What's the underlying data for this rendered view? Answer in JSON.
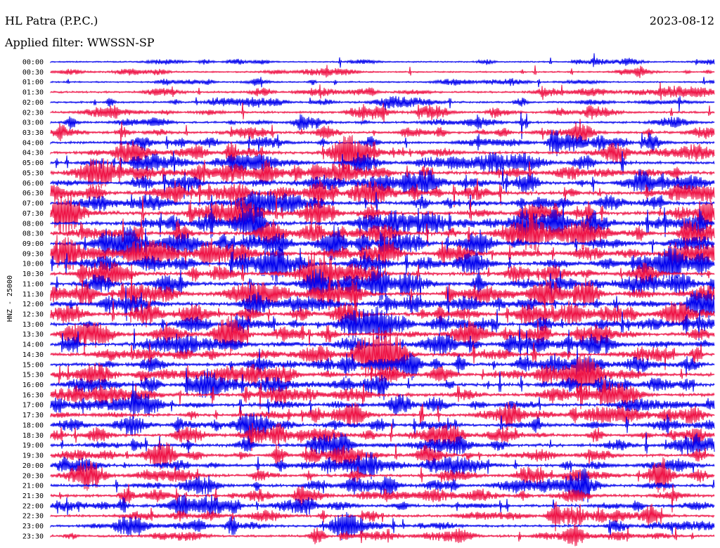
{
  "header": {
    "title": "HL Patra (P.P.C.)",
    "date": "2023-08-12",
    "filter": "Applied filter: WWSSN-SP"
  },
  "chart_data": {
    "type": "line",
    "ylabel": "HNZ - 25000",
    "row_labels": [
      "00:00",
      "00:30",
      "01:00",
      "01:30",
      "02:00",
      "02:30",
      "03:00",
      "03:30",
      "04:00",
      "04:30",
      "05:00",
      "05:30",
      "06:00",
      "06:30",
      "07:00",
      "07:30",
      "08:00",
      "08:30",
      "09:00",
      "09:30",
      "10:00",
      "10:30",
      "11:00",
      "11:30",
      "12:00",
      "12:30",
      "13:00",
      "13:30",
      "14:00",
      "14:30",
      "15:00",
      "15:30",
      "16:00",
      "16:30",
      "17:00",
      "17:30",
      "18:00",
      "18:30",
      "19:00",
      "19:30",
      "20:00",
      "20:30",
      "21:00",
      "21:30",
      "22:00",
      "22:30",
      "23:00",
      "23:30"
    ],
    "trace_colors": [
      "#0000ee",
      "#ee1144"
    ],
    "activity": [
      0.25,
      0.3,
      0.3,
      0.5,
      0.5,
      0.6,
      0.6,
      0.8,
      0.8,
      1.0,
      1.0,
      1.2,
      1.2,
      1.3,
      1.3,
      1.4,
      1.4,
      1.4,
      1.4,
      1.4,
      1.3,
      1.3,
      1.3,
      1.3,
      1.3,
      1.2,
      1.2,
      1.2,
      1.2,
      1.2,
      1.1,
      1.1,
      1.1,
      1.1,
      1.1,
      1.0,
      1.0,
      1.0,
      1.0,
      1.0,
      1.0,
      0.9,
      0.9,
      0.9,
      0.9,
      0.8,
      0.8,
      0.7
    ]
  }
}
